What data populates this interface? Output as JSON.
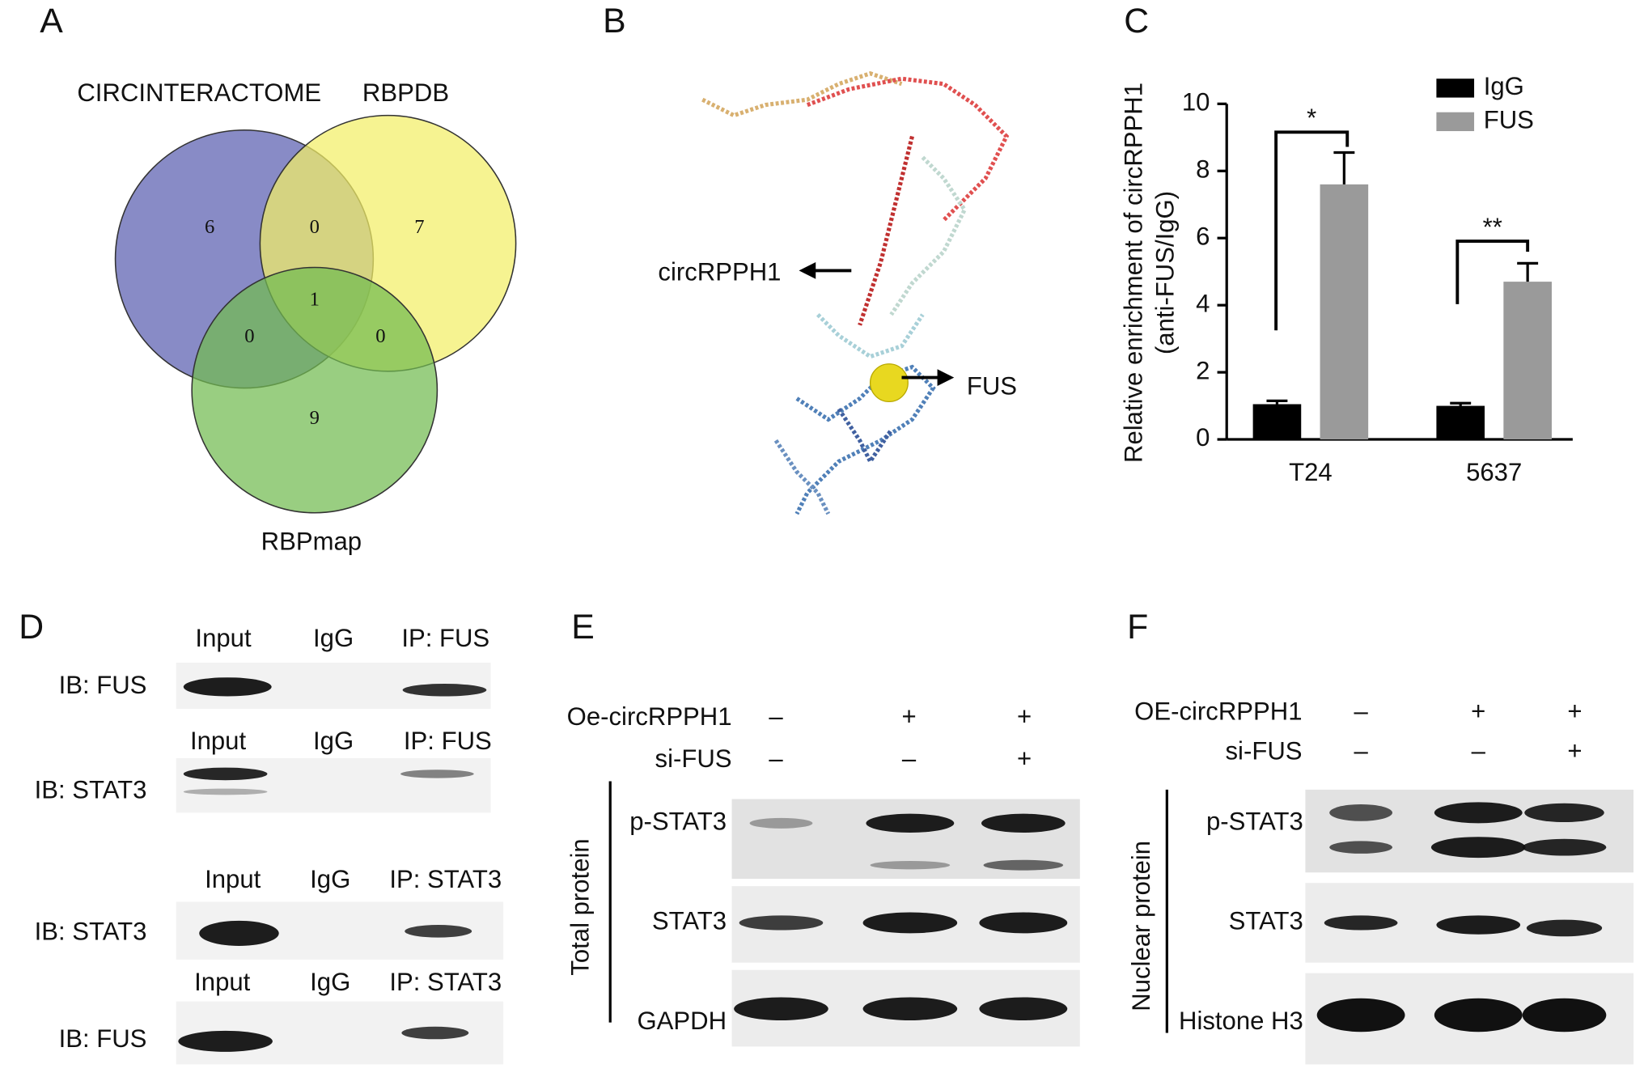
{
  "panel_labels": [
    "A",
    "B",
    "C",
    "D",
    "E",
    "F"
  ],
  "venn": {
    "sets": [
      {
        "name": "CIRCINTERACTOME",
        "color": "#2e7bc4",
        "fill": "#5a5eb0"
      },
      {
        "name": "RBPDB",
        "color": "#f0a030",
        "fill": "#f3ee66"
      },
      {
        "name": "RBPmap",
        "color": "#8cc63f",
        "fill": "#72bb50"
      }
    ],
    "regions": [
      6,
      0,
      7,
      1,
      0,
      0,
      9
    ]
  },
  "structure": {
    "labels": [
      "circRPPH1",
      "FUS"
    ]
  },
  "chart_data": {
    "type": "bar",
    "ylabel": [
      "Relative enrichment of circRPPH1",
      "(anti-FUS/IgG)"
    ],
    "categories": [
      "T24",
      "5637"
    ],
    "series": [
      {
        "name": "IgG",
        "color": "#000000",
        "values": [
          1.05,
          1.0
        ],
        "errors": [
          0.1,
          0.08
        ]
      },
      {
        "name": "FUS",
        "color": "#9a9a9a",
        "values": [
          7.6,
          4.7
        ],
        "errors": [
          0.95,
          0.55
        ]
      }
    ],
    "ylim": [
      0,
      10
    ],
    "yticks": [
      0,
      2,
      4,
      6,
      8,
      10
    ],
    "annotations": [
      "*",
      "**"
    ],
    "legend": "upper right"
  },
  "blot_d": [
    {
      "lanes": [
        "Input",
        "IgG",
        "IP: FUS"
      ],
      "ib": "IB: FUS"
    },
    {
      "lanes": [
        "Input",
        "IgG",
        "IP: FUS"
      ],
      "ib": "IB: STAT3"
    },
    {
      "lanes": [
        "Input",
        "IgG",
        "IP: STAT3"
      ],
      "ib": "IB: STAT3"
    },
    {
      "lanes": [
        "Input",
        "IgG",
        "IP: STAT3"
      ],
      "ib": "IB: FUS"
    }
  ],
  "blot_e": {
    "rows": [
      {
        "name": "Oe-circRPPH1",
        "signs": [
          "–",
          "+",
          "+"
        ]
      },
      {
        "name": "si-FUS",
        "signs": [
          "–",
          "–",
          "+"
        ]
      }
    ],
    "group": "Total protein",
    "bands": [
      "p-STAT3",
      "STAT3",
      "GAPDH"
    ]
  },
  "blot_f": {
    "rows": [
      {
        "name": "OE-circRPPH1",
        "signs": [
          "–",
          "+",
          "+"
        ]
      },
      {
        "name": "si-FUS",
        "signs": [
          "–",
          "–",
          "+"
        ]
      }
    ],
    "group": "Nuclear protein",
    "bands": [
      "p-STAT3",
      "STAT3",
      "Histone H3"
    ]
  }
}
